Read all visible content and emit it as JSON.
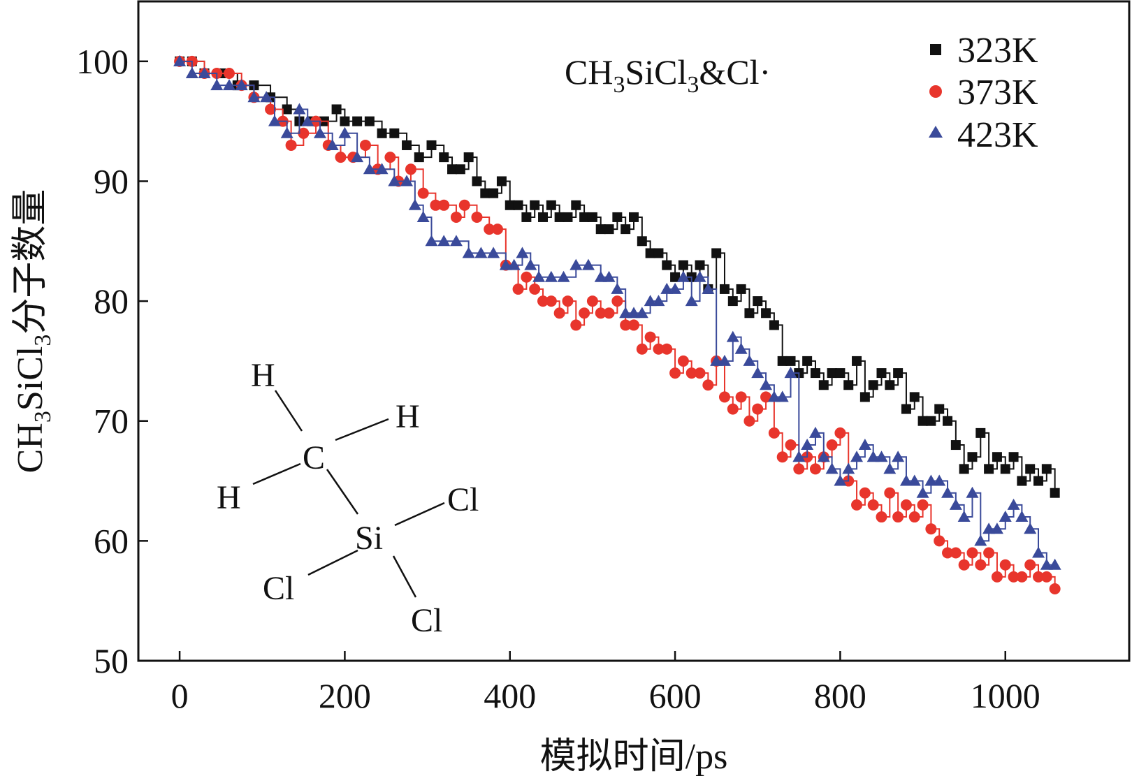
{
  "chart_data": {
    "type": "scatter",
    "title": "",
    "annotation": {
      "main": "CH",
      "sub1": "3",
      "mid": "SiCl",
      "sub2": "3",
      "tail": "&Cl·"
    },
    "xlabel": "模拟时间/ps",
    "ylabel": {
      "main": "CH",
      "sub1": "3",
      "mid": "SiCl",
      "sub2": "3",
      "tail": "分子数量"
    },
    "xlim": [
      -50,
      1150
    ],
    "ylim": [
      50,
      105
    ],
    "xticks": [
      "0",
      "200",
      "400",
      "600",
      "800",
      "1000"
    ],
    "yticks": [
      "50",
      "60",
      "70",
      "80",
      "90",
      "100"
    ],
    "xtick_values": [
      0,
      200,
      400,
      600,
      800,
      1000
    ],
    "ytick_values": [
      50,
      60,
      70,
      80,
      90,
      100
    ],
    "grid": false,
    "legend_position": "top-right",
    "series": [
      {
        "name": "323K",
        "color": "#111111",
        "marker": "square",
        "points": [
          [
            0,
            100
          ],
          [
            15,
            100
          ],
          [
            30,
            99
          ],
          [
            50,
            99
          ],
          [
            70,
            98
          ],
          [
            90,
            98
          ],
          [
            110,
            97
          ],
          [
            130,
            96
          ],
          [
            145,
            95
          ],
          [
            160,
            95
          ],
          [
            175,
            95
          ],
          [
            190,
            96
          ],
          [
            200,
            95
          ],
          [
            215,
            95
          ],
          [
            230,
            95
          ],
          [
            245,
            94
          ],
          [
            260,
            94
          ],
          [
            275,
            93
          ],
          [
            290,
            92
          ],
          [
            305,
            93
          ],
          [
            320,
            92
          ],
          [
            330,
            91
          ],
          [
            340,
            91
          ],
          [
            350,
            92
          ],
          [
            360,
            90
          ],
          [
            370,
            89
          ],
          [
            380,
            89
          ],
          [
            390,
            90
          ],
          [
            400,
            88
          ],
          [
            410,
            88
          ],
          [
            420,
            87
          ],
          [
            430,
            88
          ],
          [
            440,
            87
          ],
          [
            450,
            88
          ],
          [
            460,
            87
          ],
          [
            470,
            87
          ],
          [
            480,
            88
          ],
          [
            490,
            87
          ],
          [
            500,
            87
          ],
          [
            510,
            86
          ],
          [
            520,
            86
          ],
          [
            530,
            87
          ],
          [
            540,
            86
          ],
          [
            550,
            87
          ],
          [
            560,
            85
          ],
          [
            570,
            84
          ],
          [
            580,
            84
          ],
          [
            590,
            83
          ],
          [
            600,
            82
          ],
          [
            610,
            83
          ],
          [
            620,
            82
          ],
          [
            630,
            83
          ],
          [
            640,
            81
          ],
          [
            650,
            84
          ],
          [
            660,
            81
          ],
          [
            670,
            80
          ],
          [
            680,
            81
          ],
          [
            690,
            79
          ],
          [
            700,
            80
          ],
          [
            710,
            79
          ],
          [
            720,
            78
          ],
          [
            730,
            75
          ],
          [
            740,
            75
          ],
          [
            750,
            74
          ],
          [
            760,
            75
          ],
          [
            770,
            74
          ],
          [
            780,
            73
          ],
          [
            790,
            74
          ],
          [
            800,
            74
          ],
          [
            810,
            73
          ],
          [
            820,
            75
          ],
          [
            830,
            72
          ],
          [
            840,
            73
          ],
          [
            850,
            74
          ],
          [
            860,
            73
          ],
          [
            870,
            74
          ],
          [
            880,
            71
          ],
          [
            890,
            72
          ],
          [
            900,
            70
          ],
          [
            910,
            70
          ],
          [
            920,
            71
          ],
          [
            930,
            70
          ],
          [
            940,
            68
          ],
          [
            950,
            66
          ],
          [
            960,
            67
          ],
          [
            970,
            69
          ],
          [
            980,
            66
          ],
          [
            990,
            67
          ],
          [
            1000,
            66
          ],
          [
            1010,
            67
          ],
          [
            1020,
            65
          ],
          [
            1030,
            66
          ],
          [
            1040,
            65
          ],
          [
            1050,
            66
          ],
          [
            1060,
            64
          ]
        ]
      },
      {
        "name": "373K",
        "color": "#e8352c",
        "marker": "circle",
        "points": [
          [
            0,
            100
          ],
          [
            15,
            100
          ],
          [
            30,
            99
          ],
          [
            45,
            99
          ],
          [
            60,
            99
          ],
          [
            75,
            98
          ],
          [
            90,
            97
          ],
          [
            110,
            96
          ],
          [
            125,
            95
          ],
          [
            135,
            93
          ],
          [
            150,
            94
          ],
          [
            165,
            95
          ],
          [
            180,
            93
          ],
          [
            195,
            92
          ],
          [
            210,
            92
          ],
          [
            225,
            93
          ],
          [
            240,
            91
          ],
          [
            255,
            92
          ],
          [
            265,
            90
          ],
          [
            280,
            91
          ],
          [
            295,
            89
          ],
          [
            310,
            88
          ],
          [
            320,
            88
          ],
          [
            335,
            87
          ],
          [
            345,
            88
          ],
          [
            360,
            87
          ],
          [
            375,
            86
          ],
          [
            385,
            86
          ],
          [
            395,
            83
          ],
          [
            410,
            81
          ],
          [
            420,
            82
          ],
          [
            430,
            81
          ],
          [
            440,
            80
          ],
          [
            450,
            80
          ],
          [
            460,
            79
          ],
          [
            470,
            80
          ],
          [
            480,
            78
          ],
          [
            490,
            79
          ],
          [
            500,
            80
          ],
          [
            510,
            79
          ],
          [
            520,
            79
          ],
          [
            530,
            80
          ],
          [
            540,
            78
          ],
          [
            550,
            78
          ],
          [
            560,
            76
          ],
          [
            570,
            77
          ],
          [
            580,
            76
          ],
          [
            590,
            76
          ],
          [
            600,
            74
          ],
          [
            610,
            75
          ],
          [
            620,
            74
          ],
          [
            630,
            74
          ],
          [
            640,
            73
          ],
          [
            650,
            75
          ],
          [
            660,
            72
          ],
          [
            670,
            71
          ],
          [
            680,
            72
          ],
          [
            690,
            70
          ],
          [
            700,
            71
          ],
          [
            710,
            72
          ],
          [
            720,
            69
          ],
          [
            730,
            67
          ],
          [
            740,
            68
          ],
          [
            750,
            66
          ],
          [
            760,
            67
          ],
          [
            770,
            66
          ],
          [
            780,
            67
          ],
          [
            790,
            68
          ],
          [
            800,
            69
          ],
          [
            810,
            65
          ],
          [
            820,
            63
          ],
          [
            830,
            64
          ],
          [
            840,
            63
          ],
          [
            850,
            62
          ],
          [
            860,
            64
          ],
          [
            870,
            62
          ],
          [
            880,
            63
          ],
          [
            890,
            62
          ],
          [
            900,
            63
          ],
          [
            910,
            61
          ],
          [
            920,
            60
          ],
          [
            930,
            59
          ],
          [
            940,
            59
          ],
          [
            950,
            58
          ],
          [
            960,
            59
          ],
          [
            970,
            58
          ],
          [
            980,
            59
          ],
          [
            990,
            57
          ],
          [
            1000,
            58
          ],
          [
            1010,
            57
          ],
          [
            1020,
            57
          ],
          [
            1030,
            58
          ],
          [
            1040,
            57
          ],
          [
            1050,
            57
          ],
          [
            1060,
            56
          ]
        ]
      },
      {
        "name": "423K",
        "color": "#3a4a9a",
        "marker": "triangle",
        "points": [
          [
            0,
            100
          ],
          [
            15,
            99
          ],
          [
            30,
            99
          ],
          [
            45,
            98
          ],
          [
            60,
            98
          ],
          [
            75,
            98
          ],
          [
            90,
            97
          ],
          [
            105,
            97
          ],
          [
            115,
            95
          ],
          [
            130,
            94
          ],
          [
            145,
            96
          ],
          [
            155,
            95
          ],
          [
            170,
            94
          ],
          [
            185,
            93
          ],
          [
            200,
            94
          ],
          [
            215,
            92
          ],
          [
            230,
            91
          ],
          [
            245,
            91
          ],
          [
            260,
            90
          ],
          [
            275,
            90
          ],
          [
            285,
            88
          ],
          [
            295,
            87
          ],
          [
            305,
            85
          ],
          [
            320,
            85
          ],
          [
            335,
            85
          ],
          [
            350,
            84
          ],
          [
            365,
            84
          ],
          [
            380,
            84
          ],
          [
            395,
            83
          ],
          [
            405,
            83
          ],
          [
            415,
            84
          ],
          [
            425,
            83
          ],
          [
            435,
            82
          ],
          [
            450,
            82
          ],
          [
            465,
            82
          ],
          [
            480,
            83
          ],
          [
            495,
            83
          ],
          [
            510,
            82
          ],
          [
            520,
            82
          ],
          [
            530,
            81
          ],
          [
            540,
            79
          ],
          [
            550,
            79
          ],
          [
            560,
            79
          ],
          [
            570,
            80
          ],
          [
            580,
            80
          ],
          [
            590,
            81
          ],
          [
            600,
            81
          ],
          [
            610,
            82
          ],
          [
            620,
            80
          ],
          [
            630,
            82
          ],
          [
            640,
            81
          ],
          [
            650,
            75
          ],
          [
            660,
            75
          ],
          [
            670,
            77
          ],
          [
            680,
            76
          ],
          [
            690,
            75
          ],
          [
            700,
            74
          ],
          [
            710,
            73
          ],
          [
            720,
            72
          ],
          [
            730,
            72
          ],
          [
            740,
            74
          ],
          [
            750,
            67
          ],
          [
            760,
            68
          ],
          [
            770,
            69
          ],
          [
            780,
            67
          ],
          [
            790,
            66
          ],
          [
            800,
            65
          ],
          [
            810,
            66
          ],
          [
            820,
            67
          ],
          [
            830,
            68
          ],
          [
            840,
            67
          ],
          [
            850,
            67
          ],
          [
            860,
            66
          ],
          [
            870,
            67
          ],
          [
            880,
            65
          ],
          [
            890,
            65
          ],
          [
            900,
            64
          ],
          [
            910,
            65
          ],
          [
            920,
            65
          ],
          [
            930,
            64
          ],
          [
            940,
            63
          ],
          [
            950,
            62
          ],
          [
            960,
            64
          ],
          [
            970,
            60
          ],
          [
            980,
            61
          ],
          [
            990,
            61
          ],
          [
            1000,
            62
          ],
          [
            1010,
            63
          ],
          [
            1020,
            62
          ],
          [
            1030,
            61
          ],
          [
            1040,
            59
          ],
          [
            1050,
            58
          ],
          [
            1060,
            58
          ]
        ]
      }
    ]
  },
  "molecule": {
    "atoms": {
      "h_top": "H",
      "h_right": "H",
      "h_left": "H",
      "c": "C",
      "si": "Si",
      "cl_right": "Cl",
      "cl_left": "Cl",
      "cl_bottom": "Cl"
    }
  }
}
